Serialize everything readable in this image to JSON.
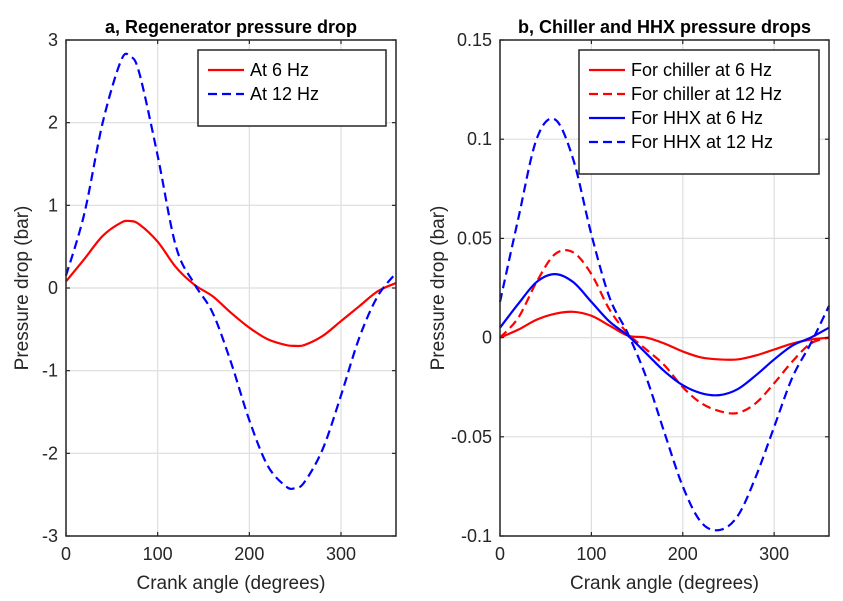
{
  "chart_data": [
    {
      "type": "line",
      "title": "a, Regenerator pressure drop",
      "xlabel": "Crank angle (degrees)",
      "ylabel": "Pressure drop (bar)",
      "xlim": [
        0,
        360
      ],
      "ylim": [
        -3,
        3
      ],
      "xticks": [
        0,
        100,
        200,
        300
      ],
      "xtick_labels": [
        "0",
        "100",
        "200",
        "300"
      ],
      "yticks": [
        -3,
        -2,
        -1,
        0,
        1,
        2,
        3
      ],
      "ytick_labels": [
        "-3",
        "-2",
        "-1",
        "0",
        "1",
        "2",
        "3"
      ],
      "grid": true,
      "legend_position": "top-right",
      "x": [
        0,
        20,
        40,
        60,
        70,
        80,
        100,
        120,
        140,
        160,
        180,
        200,
        220,
        240,
        250,
        260,
        280,
        300,
        320,
        340,
        360
      ],
      "series": [
        {
          "name": "At 6 Hz",
          "color": "#ff0000",
          "dash": "solid",
          "values": [
            0.08,
            0.35,
            0.63,
            0.79,
            0.81,
            0.77,
            0.56,
            0.25,
            0.04,
            -0.1,
            -0.3,
            -0.48,
            -0.62,
            -0.69,
            -0.7,
            -0.69,
            -0.58,
            -0.4,
            -0.22,
            -0.04,
            0.06
          ]
        },
        {
          "name": "At 12 Hz",
          "color": "#0000ff",
          "dash": "dashed",
          "values": [
            0.15,
            0.9,
            2.0,
            2.75,
            2.8,
            2.6,
            1.6,
            0.5,
            0.05,
            -0.3,
            -0.9,
            -1.6,
            -2.15,
            -2.4,
            -2.42,
            -2.35,
            -1.95,
            -1.3,
            -0.6,
            -0.1,
            0.18
          ]
        }
      ]
    },
    {
      "type": "line",
      "title": "b, Chiller and HHX pressure drops",
      "xlabel": "Crank angle (degrees)",
      "ylabel": "Pressure drop (bar)",
      "xlim": [
        0,
        360
      ],
      "ylim": [
        -0.1,
        0.15
      ],
      "xticks": [
        0,
        100,
        200,
        300
      ],
      "xtick_labels": [
        "0",
        "100",
        "200",
        "300"
      ],
      "yticks": [
        -0.1,
        -0.05,
        0,
        0.05,
        0.1,
        0.15
      ],
      "ytick_labels": [
        "-0.1",
        "-0.05",
        "0",
        "0.05",
        "0.1",
        "0.15"
      ],
      "grid": true,
      "legend_position": "top-right",
      "x": [
        0,
        20,
        40,
        60,
        80,
        100,
        120,
        140,
        160,
        180,
        200,
        220,
        240,
        260,
        280,
        300,
        320,
        340,
        360
      ],
      "series": [
        {
          "name": "For chiller at 6 Hz",
          "color": "#ff0000",
          "dash": "solid",
          "values": [
            0.0,
            0.004,
            0.009,
            0.012,
            0.013,
            0.011,
            0.006,
            0.001,
            0.0,
            -0.003,
            -0.007,
            -0.01,
            -0.011,
            -0.011,
            -0.009,
            -0.006,
            -0.003,
            -0.001,
            0.0
          ]
        },
        {
          "name": "For chiller at 12 Hz",
          "color": "#ff0000",
          "dash": "dashed",
          "values": [
            0.0,
            0.01,
            0.028,
            0.042,
            0.043,
            0.032,
            0.014,
            0.002,
            -0.006,
            -0.014,
            -0.025,
            -0.033,
            -0.037,
            -0.038,
            -0.033,
            -0.023,
            -0.012,
            -0.003,
            0.0
          ]
        },
        {
          "name": "For HHX at 6 Hz",
          "color": "#0000ff",
          "dash": "solid",
          "values": [
            0.005,
            0.017,
            0.028,
            0.032,
            0.028,
            0.018,
            0.008,
            0.001,
            -0.008,
            -0.017,
            -0.024,
            -0.028,
            -0.029,
            -0.026,
            -0.019,
            -0.011,
            -0.004,
            0.0,
            0.005
          ]
        },
        {
          "name": "For HHX at 12 Hz",
          "color": "#0000ff",
          "dash": "dashed",
          "values": [
            0.018,
            0.06,
            0.1,
            0.11,
            0.09,
            0.052,
            0.02,
            0.002,
            -0.02,
            -0.048,
            -0.075,
            -0.093,
            -0.097,
            -0.09,
            -0.07,
            -0.045,
            -0.02,
            -0.003,
            0.016
          ]
        }
      ]
    }
  ]
}
